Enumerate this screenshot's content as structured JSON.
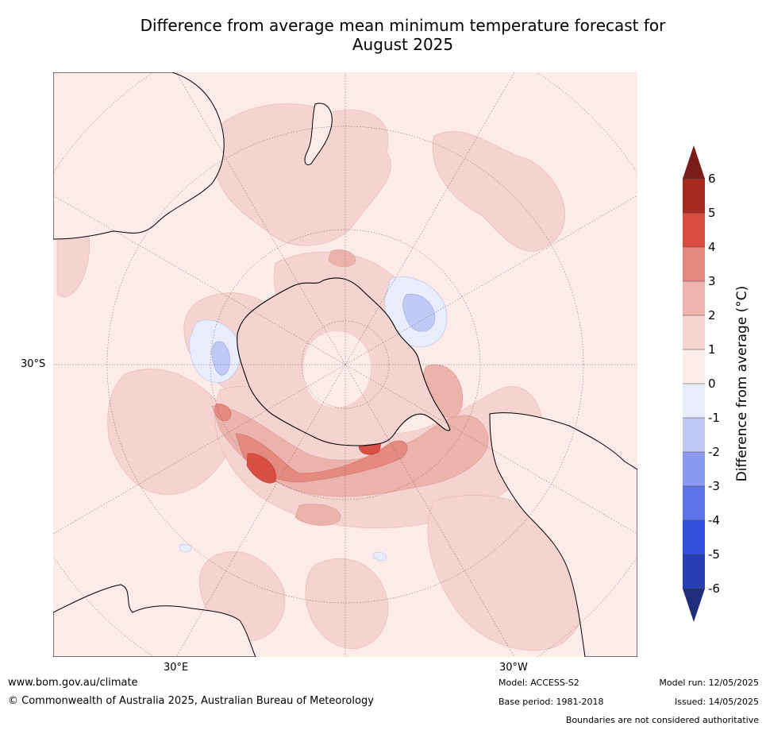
{
  "title": {
    "line1": "Difference from average mean minimum temperature forecast for",
    "line2": "August 2025"
  },
  "map": {
    "projection": "south polar stereographic",
    "axis_labels": {
      "left_lat": "30°S",
      "bottom_left_lon": "30°E",
      "bottom_right_lon": "30°W"
    },
    "colors": {
      "ocean_base": "#fcebe9",
      "warm_1_2": "#f4d3d0",
      "warm_2_3": "#ecb3ad",
      "warm_3_4": "#e58a80",
      "warm_4_5": "#da4f44",
      "cool_0_1": "#e9ecfc",
      "cool_1_2": "#c1c9f4"
    }
  },
  "colorbar": {
    "label": "Difference from average (°C)",
    "ticks": [
      "6",
      "5",
      "4",
      "3",
      "2",
      "1",
      "0",
      "-1",
      "-2",
      "-3",
      "-4",
      "-5",
      "-6"
    ],
    "colors": [
      "#a72a22",
      "#d94d40",
      "#e68880",
      "#eeb4ad",
      "#f5d4d1",
      "#fbecea",
      "#e8ecfb",
      "#c0c8f3",
      "#8a9af0",
      "#5e74e9",
      "#3550e1",
      "#273eb5"
    ],
    "over_color": "#7a1c17",
    "under_color": "#1f2d7d"
  },
  "footer": {
    "website": "www.bom.gov.au/climate",
    "copyright": "© Commonwealth of Australia 2025, Australian Bureau of Meteorology",
    "model": "Model: ACCESS-S2",
    "base_period": "Base period: 1981-2018",
    "model_run": "Model run: 12/05/2025",
    "issued": "Issued: 14/05/2025",
    "disclaimer": "Boundaries are not considered authoritative"
  }
}
